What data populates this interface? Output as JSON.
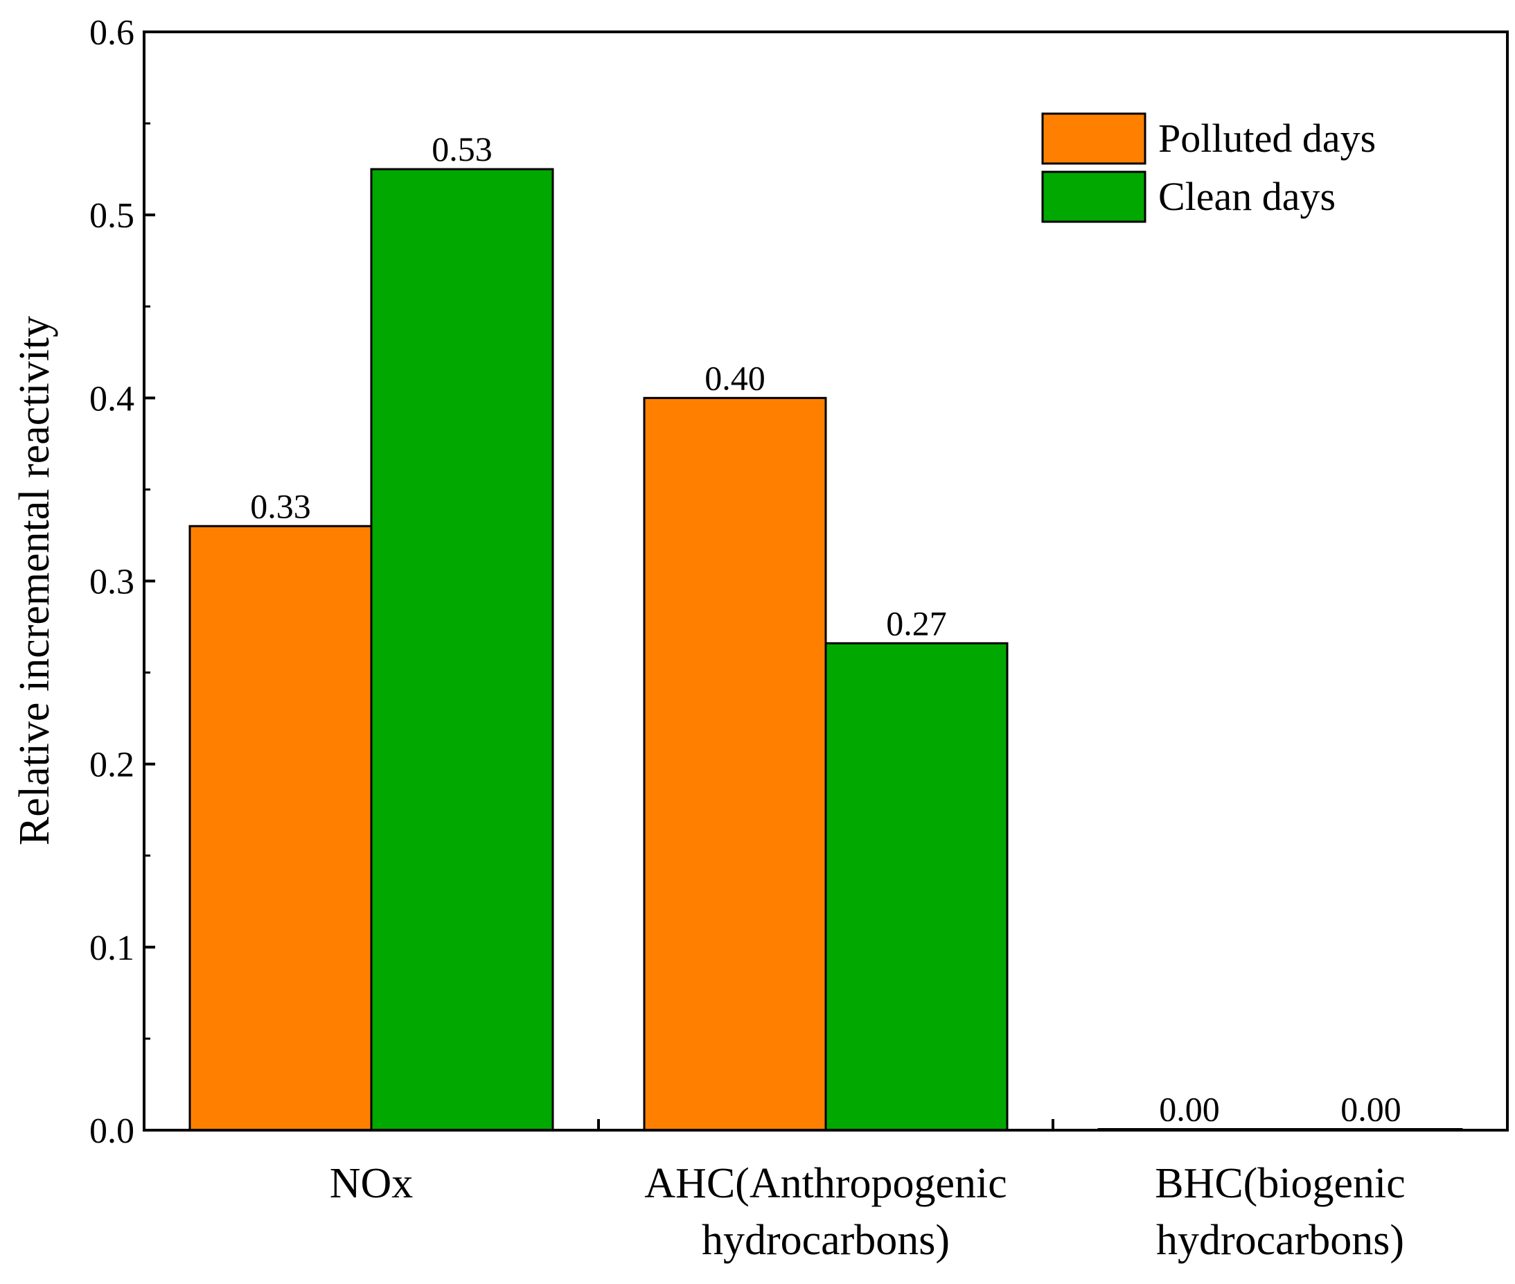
{
  "chart_data": {
    "type": "bar",
    "title": "",
    "xlabel": "",
    "ylabel": "Relative incremental reactivity",
    "ylim": [
      0,
      0.6
    ],
    "yticks": [
      0.0,
      0.1,
      0.2,
      0.3,
      0.4,
      0.5,
      0.6
    ],
    "ytick_labels": [
      "0.0",
      "0.1",
      "0.2",
      "0.3",
      "0.4",
      "0.5",
      "0.6"
    ],
    "grid": false,
    "legend_position": "top-right",
    "categories": [
      [
        "NOx"
      ],
      [
        "AHC(Anthropogenic",
        "hydrocarbons)"
      ],
      [
        "BHC(biogenic",
        "hydrocarbons)"
      ]
    ],
    "series": [
      {
        "name": "Polluted days",
        "color": "#FF8000",
        "values": [
          0.33,
          0.4,
          0.0
        ],
        "labels": [
          "0.33",
          "0.40",
          "0.00"
        ]
      },
      {
        "name": "Clean days",
        "color": "#00A800",
        "values": [
          0.525,
          0.266,
          0.0005
        ],
        "labels": [
          "0.53",
          "0.27",
          "0.00"
        ]
      }
    ]
  }
}
